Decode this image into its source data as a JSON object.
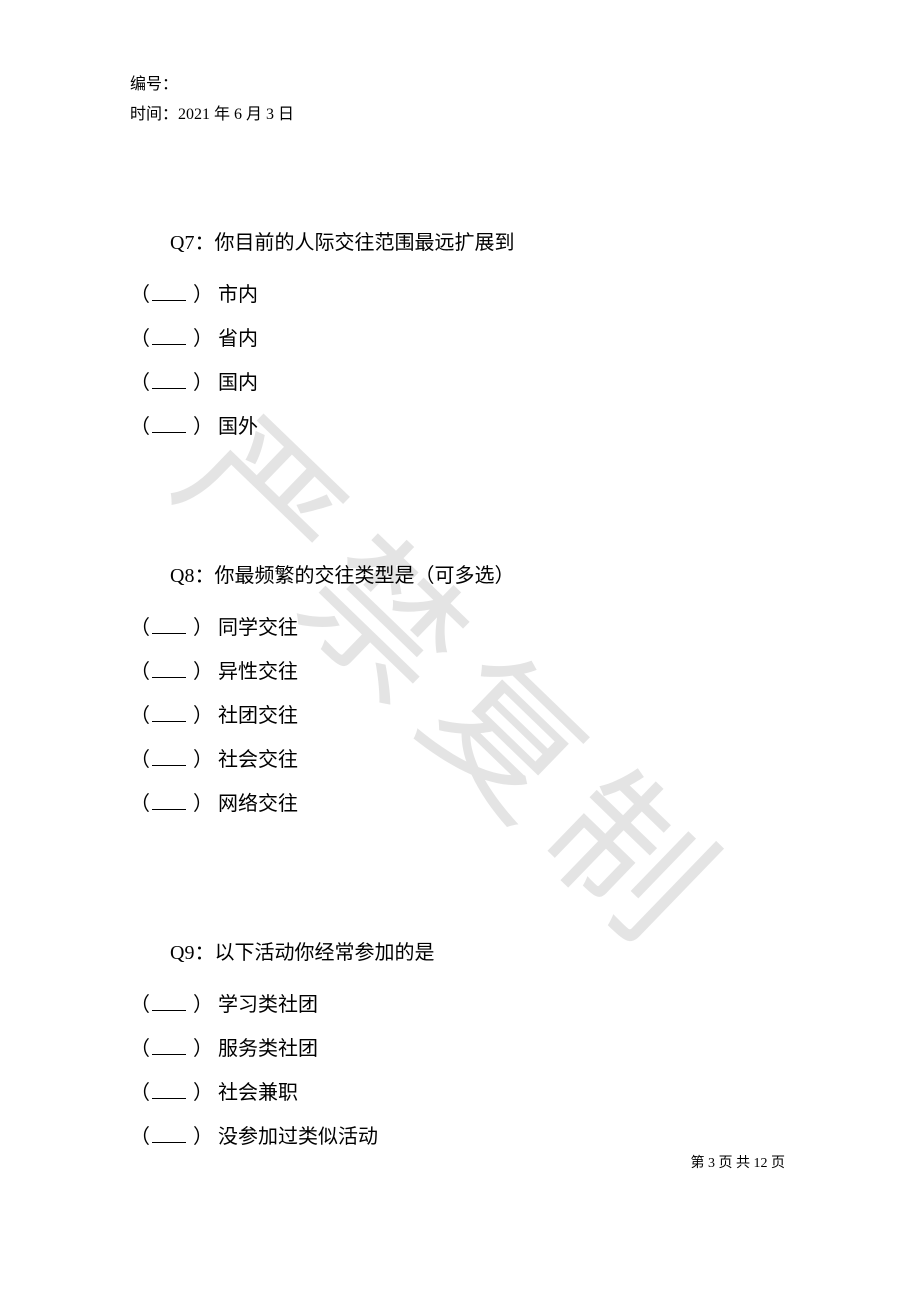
{
  "header": {
    "id_label": "编号：",
    "date_label": "时间：",
    "date_value": "2021 年 6 月 3 日"
  },
  "watermark": "严禁复制",
  "questions": [
    {
      "title": "Q7：你目前的人际交往范围最远扩展到",
      "options": [
        "市内",
        "省内",
        "国内",
        "国外"
      ]
    },
    {
      "title": "Q8：你最频繁的交往类型是（可多选）",
      "options": [
        "同学交往",
        "异性交往",
        "社团交往",
        "社会交往",
        "网络交往"
      ]
    },
    {
      "title": "Q9：以下活动你经常参加的是",
      "options": [
        "学习类社团",
        "服务类社团",
        "社会兼职",
        "没参加过类似活动"
      ]
    }
  ],
  "footer": {
    "prefix": "第 ",
    "current": "3",
    "mid": " 页 共 ",
    "total": "12",
    "suffix": " 页"
  }
}
